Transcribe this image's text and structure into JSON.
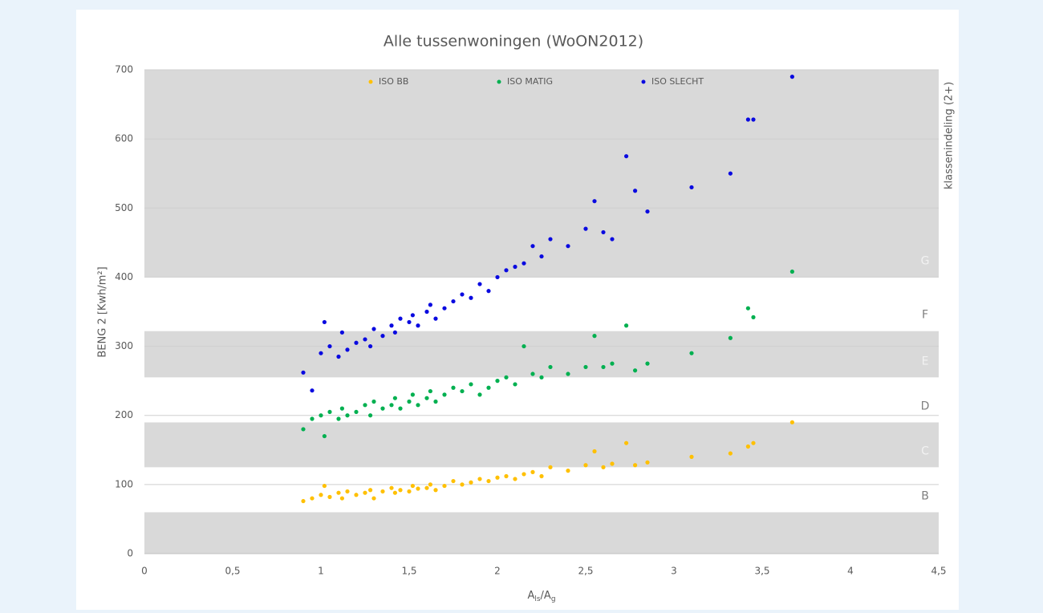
{
  "chart_data": {
    "type": "scatter",
    "title": "Alle tussenwoningen (WoON2012)",
    "y_label": "BENG 2 [Kwh/m²]",
    "x_label": [
      "A",
      "ls",
      "/A",
      "g"
    ],
    "side_label": "klassenindeling (2+)",
    "xlim": [
      0,
      4.5
    ],
    "ylim": [
      0,
      700
    ],
    "xticks": [
      0,
      {
        "value": 0.5,
        "label": "0,5"
      },
      1,
      {
        "value": 1.5,
        "label": "1,5"
      },
      2,
      {
        "value": 2.5,
        "label": "2,5"
      },
      3,
      {
        "value": 3.5,
        "label": "3,5"
      },
      4,
      {
        "value": 4.5,
        "label": "4,5"
      }
    ],
    "yticks": [
      0,
      100,
      200,
      300,
      400,
      500,
      600,
      700
    ],
    "grid": true,
    "legend": "top",
    "bands": [
      {
        "from": 0,
        "to": 60,
        "shaded": true
      },
      {
        "from": 60,
        "to": 125,
        "label": "B",
        "shaded": false
      },
      {
        "from": 125,
        "to": 190,
        "label": "C",
        "shaded": true
      },
      {
        "from": 190,
        "to": 255,
        "label": "D",
        "shaded": false
      },
      {
        "from": 255,
        "to": 322,
        "label": "E",
        "shaded": true
      },
      {
        "from": 322,
        "to": 400,
        "label": "F",
        "shaded": false
      },
      {
        "from": 400,
        "to": 700,
        "label": "G",
        "shaded": true
      }
    ],
    "series": [
      {
        "name": "ISO BB",
        "color": "#ffc000",
        "x": [
          0.9,
          0.95,
          1.0,
          1.02,
          1.05,
          1.1,
          1.12,
          1.15,
          1.2,
          1.25,
          1.28,
          1.3,
          1.35,
          1.4,
          1.42,
          1.45,
          1.5,
          1.52,
          1.55,
          1.6,
          1.62,
          1.65,
          1.7,
          1.75,
          1.8,
          1.85,
          1.9,
          1.95,
          2.0,
          2.05,
          2.1,
          2.15,
          2.2,
          2.25,
          2.3,
          2.4,
          2.5,
          2.55,
          2.6,
          2.65,
          2.73,
          2.78,
          2.85,
          3.1,
          3.32,
          3.42,
          3.45,
          3.67
        ],
        "values": [
          76,
          80,
          85,
          98,
          82,
          88,
          80,
          90,
          85,
          88,
          92,
          80,
          90,
          95,
          88,
          92,
          90,
          98,
          94,
          95,
          100,
          92,
          98,
          105,
          100,
          103,
          108,
          105,
          110,
          112,
          108,
          115,
          118,
          112,
          125,
          120,
          128,
          148,
          125,
          130,
          160,
          128,
          132,
          140,
          145,
          155,
          160,
          190
        ]
      },
      {
        "name": "ISO MATIG",
        "color": "#00b050",
        "x": [
          0.9,
          0.95,
          1.0,
          1.02,
          1.05,
          1.1,
          1.12,
          1.15,
          1.2,
          1.25,
          1.28,
          1.3,
          1.35,
          1.4,
          1.42,
          1.45,
          1.5,
          1.52,
          1.55,
          1.6,
          1.62,
          1.65,
          1.7,
          1.75,
          1.8,
          1.85,
          1.9,
          1.95,
          2.0,
          2.05,
          2.1,
          2.15,
          2.2,
          2.25,
          2.3,
          2.4,
          2.5,
          2.55,
          2.6,
          2.65,
          2.73,
          2.78,
          2.85,
          3.1,
          3.32,
          3.42,
          3.45,
          3.67
        ],
        "values": [
          180,
          195,
          200,
          170,
          205,
          195,
          210,
          200,
          205,
          215,
          200,
          220,
          210,
          215,
          225,
          210,
          220,
          230,
          215,
          225,
          235,
          220,
          230,
          240,
          235,
          245,
          230,
          240,
          250,
          255,
          245,
          300,
          260,
          255,
          270,
          260,
          270,
          315,
          270,
          275,
          330,
          265,
          275,
          290,
          312,
          355,
          342,
          408
        ]
      },
      {
        "name": "ISO SLECHT",
        "color": "#0a0ae0",
        "x": [
          0.9,
          0.95,
          1.0,
          1.02,
          1.05,
          1.1,
          1.12,
          1.15,
          1.2,
          1.25,
          1.28,
          1.3,
          1.35,
          1.4,
          1.42,
          1.45,
          1.5,
          1.52,
          1.55,
          1.6,
          1.62,
          1.65,
          1.7,
          1.75,
          1.8,
          1.85,
          1.9,
          1.95,
          2.0,
          2.05,
          2.1,
          2.15,
          2.2,
          2.25,
          2.3,
          2.4,
          2.5,
          2.55,
          2.6,
          2.65,
          2.73,
          2.78,
          2.85,
          3.1,
          3.32,
          3.42,
          3.45,
          3.67
        ],
        "values": [
          262,
          236,
          290,
          335,
          300,
          285,
          320,
          295,
          305,
          310,
          300,
          325,
          315,
          330,
          320,
          340,
          335,
          345,
          330,
          350,
          360,
          340,
          355,
          365,
          375,
          370,
          390,
          380,
          400,
          410,
          415,
          420,
          445,
          430,
          455,
          445,
          470,
          510,
          465,
          455,
          575,
          525,
          495,
          530,
          550,
          628,
          628,
          690
        ]
      }
    ]
  }
}
